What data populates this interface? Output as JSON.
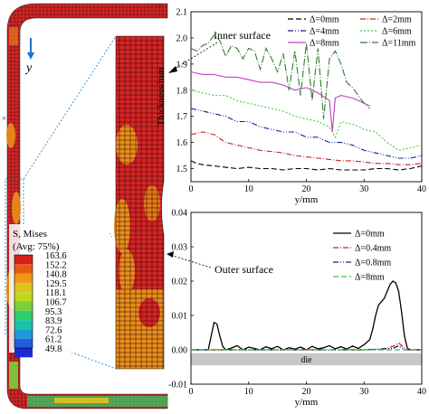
{
  "fea": {
    "y_label": "y",
    "legend_title_1": "S, Mises",
    "legend_title_2": "(Avg: 75%)",
    "legend_values": [
      "163.6",
      "152.2",
      "140.8",
      "129.5",
      "118.1",
      "106.7",
      "95.3",
      "83.9",
      "72.6",
      "61.2",
      "49.8"
    ],
    "legend_colors": [
      "#d81e1e",
      "#e85a14",
      "#f0961a",
      "#e0c21c",
      "#c2d81c",
      "#78d23a",
      "#2ccf6a",
      "#1bc2a8",
      "#1e9ad8",
      "#2060d8",
      "#1a2ccf"
    ],
    "inner_surface_label": "Inner surface",
    "outer_surface_label": "Outer surface"
  },
  "chart_data": [
    {
      "type": "line",
      "xlabel": "y/mm",
      "ylabel": "Thickness/mm",
      "xlim": [
        0,
        40
      ],
      "ylim": [
        1.45,
        2.1
      ],
      "xticks": [
        "0",
        "10",
        "20",
        "30",
        "40"
      ],
      "yticks": [
        "1.5",
        "1.6",
        "1.7",
        "1.8",
        "1.9",
        "2.0",
        "2.1"
      ],
      "legend_position": "top-right",
      "series": [
        {
          "name": "Δ=0mm",
          "color": "#000000",
          "dash": "6,3",
          "x": [
            0,
            1,
            2,
            4,
            6,
            8,
            10,
            12,
            14,
            16,
            18,
            20,
            22,
            24,
            26,
            28,
            30,
            32,
            34,
            36,
            38,
            40
          ],
          "y": [
            1.53,
            1.52,
            1.515,
            1.51,
            1.505,
            1.5,
            1.505,
            1.5,
            1.5,
            1.495,
            1.5,
            1.5,
            1.495,
            1.5,
            1.495,
            1.495,
            1.495,
            1.5,
            1.5,
            1.495,
            1.5,
            1.51
          ]
        },
        {
          "name": "Δ=2mm",
          "color": "#cc2222",
          "dash": "6,2,1,2",
          "x": [
            0,
            2,
            4,
            6,
            8,
            10,
            12,
            14,
            16,
            18,
            20,
            22,
            24,
            26,
            28,
            30,
            32,
            34,
            36,
            38,
            40
          ],
          "y": [
            1.63,
            1.64,
            1.63,
            1.6,
            1.59,
            1.58,
            1.57,
            1.565,
            1.56,
            1.55,
            1.545,
            1.54,
            1.535,
            1.53,
            1.53,
            1.525,
            1.52,
            1.52,
            1.515,
            1.515,
            1.52
          ]
        },
        {
          "name": "Δ=4mm",
          "color": "#1a1a9a",
          "dash": "6,2,1,2,1,2",
          "x": [
            0,
            2,
            4,
            6,
            8,
            10,
            12,
            14,
            16,
            18,
            20,
            22,
            24,
            26,
            28,
            30,
            32,
            34,
            36,
            38,
            40
          ],
          "y": [
            1.73,
            1.72,
            1.71,
            1.7,
            1.68,
            1.68,
            1.66,
            1.65,
            1.64,
            1.64,
            1.62,
            1.62,
            1.6,
            1.6,
            1.59,
            1.57,
            1.56,
            1.55,
            1.54,
            1.54,
            1.55
          ]
        },
        {
          "name": "Δ=6mm",
          "color": "#44cc44",
          "dash": "2,2",
          "x": [
            0,
            2,
            4,
            6,
            8,
            10,
            12,
            14,
            16,
            18,
            20,
            22,
            24,
            25,
            26,
            28,
            30,
            32,
            34,
            36,
            38,
            40
          ],
          "y": [
            1.8,
            1.79,
            1.78,
            1.78,
            1.76,
            1.75,
            1.74,
            1.73,
            1.72,
            1.7,
            1.69,
            1.68,
            1.66,
            1.62,
            1.68,
            1.67,
            1.65,
            1.64,
            1.6,
            1.57,
            1.58,
            1.59
          ]
        },
        {
          "name": "Δ=8mm",
          "color": "#bb44bb",
          "dash": "",
          "x": [
            0,
            2,
            4,
            6,
            8,
            10,
            12,
            14,
            16,
            18,
            20,
            22,
            24,
            24.5,
            25,
            26,
            28,
            30,
            31
          ],
          "y": [
            1.87,
            1.86,
            1.86,
            1.85,
            1.85,
            1.84,
            1.83,
            1.83,
            1.82,
            1.8,
            1.81,
            1.79,
            1.76,
            1.64,
            1.77,
            1.78,
            1.77,
            1.75,
            1.74
          ]
        },
        {
          "name": "Δ=11mm",
          "color": "#2e7d2e",
          "dash": "8,2,1,2",
          "x": [
            0,
            1,
            2,
            3,
            4,
            5,
            6,
            7,
            8,
            9,
            10,
            11,
            12,
            13,
            14,
            15,
            16,
            17,
            18,
            19,
            20,
            21,
            22,
            23,
            24,
            25,
            26,
            27,
            28,
            29,
            30,
            31
          ],
          "y": [
            1.96,
            1.95,
            1.97,
            1.98,
            2.01,
            1.99,
            1.93,
            1.97,
            1.96,
            1.92,
            1.96,
            1.95,
            1.88,
            1.96,
            1.92,
            1.87,
            1.94,
            1.8,
            1.95,
            1.78,
            1.98,
            1.76,
            1.96,
            1.69,
            1.92,
            1.95,
            1.9,
            1.83,
            1.81,
            1.78,
            1.75,
            1.73
          ]
        }
      ]
    },
    {
      "type": "line",
      "xlabel": "y/mm",
      "ylabel": "",
      "xlim": [
        0,
        40
      ],
      "ylim": [
        -0.01,
        0.04
      ],
      "xticks": [
        "0",
        "10",
        "20",
        "30",
        "40"
      ],
      "yticks": [
        "-0.01",
        "0.00",
        "0.01",
        "0.02",
        "0.03",
        "0.04"
      ],
      "legend_position": "top-right",
      "die_label": "die",
      "series": [
        {
          "name": "Δ=0mm",
          "color": "#000000",
          "dash": "",
          "x": [
            0,
            3,
            3.5,
            4,
            4.5,
            5,
            5.5,
            6,
            7,
            8,
            9,
            10,
            11,
            12,
            13,
            14,
            15,
            16,
            17,
            18,
            19,
            20,
            21,
            22,
            23,
            24,
            25,
            26,
            27,
            28,
            29,
            30,
            31,
            31.5,
            32,
            32.5,
            33,
            33.5,
            34,
            34.5,
            35,
            35.5,
            36,
            36.5,
            37,
            37.5,
            38,
            39,
            40
          ],
          "y": [
            0,
            0,
            0.004,
            0.008,
            0.0075,
            0.004,
            0.001,
            0,
            0.0005,
            0.0012,
            0,
            0.0008,
            0.0004,
            0,
            0.0009,
            0.0003,
            0.001,
            0,
            0.0006,
            0.0002,
            0.0008,
            0,
            0.001,
            0.0003,
            0.0006,
            0.0012,
            0.0003,
            0.0009,
            0.0002,
            0.0011,
            0.0004,
            0.0015,
            0.003,
            0.006,
            0.01,
            0.013,
            0.014,
            0.015,
            0.017,
            0.019,
            0.02,
            0.0195,
            0.017,
            0.011,
            0.004,
            0.0005,
            0,
            0,
            0
          ]
        },
        {
          "name": "Δ=0.4mm",
          "color": "#cc2222",
          "dash": "6,2,1,2",
          "x": [
            0,
            10,
            20,
            30,
            33,
            34,
            35,
            36,
            37,
            38,
            40
          ],
          "y": [
            0,
            0,
            0,
            0,
            0.0002,
            0.0005,
            0.001,
            0.002,
            0.0005,
            0,
            0
          ]
        },
        {
          "name": "Δ=0.8mm",
          "color": "#1a1a9a",
          "dash": "6,2,1,2,1,2",
          "x": [
            0,
            10,
            20,
            30,
            35,
            36,
            37,
            40
          ],
          "y": [
            0,
            0,
            0,
            0,
            0.0004,
            0.0012,
            0,
            0
          ]
        },
        {
          "name": "Δ=8mm",
          "color": "#44bb44",
          "dash": "6,3",
          "x": [
            0,
            10,
            20,
            30,
            40
          ],
          "y": [
            0,
            0,
            0,
            0,
            0
          ]
        }
      ]
    }
  ]
}
